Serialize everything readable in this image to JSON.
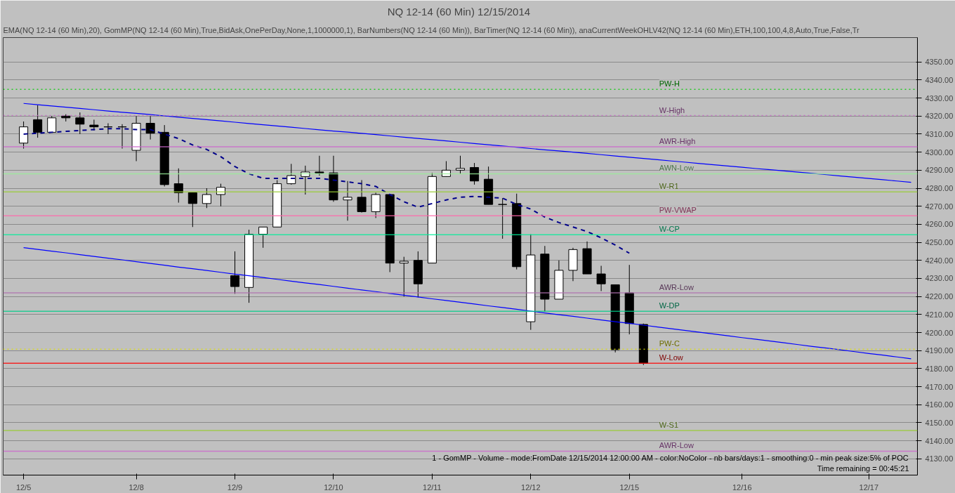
{
  "chart_data": {
    "type": "candlestick",
    "title": "NQ 12-14 (60 Min)  12/15/2014",
    "categories": [
      "12/5",
      null,
      null,
      null,
      null,
      null,
      null,
      null,
      "12/8",
      null,
      null,
      null,
      null,
      null,
      null,
      "12/9",
      null,
      null,
      null,
      null,
      null,
      null,
      "12/10",
      null,
      null,
      null,
      null,
      null,
      null,
      "12/11",
      null,
      null,
      null,
      null,
      null,
      null,
      "12/12",
      null,
      null,
      null,
      null,
      null,
      null,
      "12/15",
      null,
      null,
      null,
      null,
      null,
      null,
      null,
      "12/16",
      null,
      null,
      null,
      null,
      null,
      null,
      null,
      null,
      "12/17",
      null,
      null,
      null
    ],
    "ohlc": [
      [
        4305,
        4317,
        4302,
        4314
      ],
      [
        4318,
        4326,
        4308,
        4311
      ],
      [
        4311,
        4320,
        4311,
        4319
      ],
      [
        4320,
        4321,
        4317,
        4319
      ],
      [
        4319,
        4322,
        4310,
        4315.5
      ],
      [
        4315,
        4318,
        4312,
        4314
      ],
      [
        4314,
        4316,
        4310,
        4314
      ],
      [
        4314,
        4315.5,
        4302,
        4314
      ],
      [
        4301,
        4320,
        4295,
        4316
      ],
      [
        4316,
        4320,
        4307,
        4310.5
      ],
      [
        4311,
        4315,
        4281,
        4282
      ],
      [
        4282.5,
        4291,
        4272,
        4277.5
      ],
      [
        4277.5,
        4277.5,
        4258.5,
        4271.5
      ],
      [
        4271.5,
        4280,
        4269,
        4276.5
      ],
      [
        4276.5,
        4282.5,
        4270,
        4280.5
      ],
      [
        4231.5,
        4245,
        4221.5,
        4225.5
      ],
      [
        4225,
        4257,
        4216.5,
        4254.5
      ],
      [
        4254.5,
        4258.5,
        4247,
        4258.5
      ],
      [
        4258.5,
        4284.5,
        4258.5,
        4282.5
      ],
      [
        4282.5,
        4293.5,
        4282,
        4287
      ],
      [
        4286.5,
        4292.5,
        4276.5,
        4289
      ],
      [
        4289,
        4298,
        4287,
        4288.5
      ],
      [
        4288.5,
        4298,
        4272.5,
        4273.5
      ],
      [
        4273.5,
        4284,
        4262,
        4275
      ],
      [
        4275,
        4284.5,
        4266.5,
        4267
      ],
      [
        4267,
        4277.5,
        4263.5,
        4276.5
      ],
      [
        4276.5,
        4276.5,
        4233.5,
        4238.5
      ],
      [
        4238.5,
        4242,
        4220,
        4239.5
      ],
      [
        4240,
        4245,
        4219.5,
        4227
      ],
      [
        4238.5,
        4288.5,
        4238.5,
        4286.5
      ],
      [
        4286.5,
        4295,
        4286.5,
        4290
      ],
      [
        4290,
        4298,
        4288,
        4291
      ],
      [
        4291.5,
        4294,
        4282,
        4284
      ],
      [
        4285,
        4292,
        4271,
        4271
      ],
      [
        4271,
        4274.5,
        4252,
        4271
      ],
      [
        4271.5,
        4277,
        4235,
        4236.5
      ],
      [
        4206,
        4254.5,
        4201.5,
        4243
      ],
      [
        4243.5,
        4248,
        4211.5,
        4218.5
      ],
      [
        4218.5,
        4240,
        4218.5,
        4234.5
      ],
      [
        4234.5,
        4247,
        4228.5,
        4246
      ],
      [
        4246.5,
        4250.5,
        4232.5,
        4232.5
      ],
      [
        4232.5,
        4237,
        4223,
        4227
      ],
      [
        4226.5,
        4226.5,
        4189,
        4190.5
      ],
      [
        4222,
        4237.5,
        4199,
        4205
      ],
      [
        4204.5,
        4205,
        4182,
        4183
      ],
      null,
      null,
      null,
      null,
      null,
      null,
      null,
      null,
      null,
      null,
      null,
      null,
      null,
      null,
      null,
      null,
      null,
      null,
      null
    ],
    "series": [
      {
        "type": "line",
        "color": "#00008b",
        "line_style": "dashed",
        "values": [
          4310,
          4310.5,
          4311,
          4311.5,
          4312,
          4312.5,
          4313,
          4313,
          4312.5,
          4312.5,
          4310,
          4307.5,
          4304,
          4301.5,
          4297.5,
          4292,
          4288,
          4285.5,
          4285.5,
          4285.5,
          4285.5,
          4285.5,
          4284.5,
          4283.5,
          4282.5,
          4281,
          4276.5,
          4272.5,
          4269.5,
          4271.5,
          4273.5,
          4275,
          4275.5,
          4275,
          4274.5,
          4271,
          4268.5,
          4264,
          4261,
          4258.5,
          4256,
          4252.5,
          4248.5,
          4244,
          null,
          null,
          null,
          null,
          null,
          null,
          null,
          null,
          null,
          null,
          null,
          null,
          null,
          null,
          null,
          null,
          null,
          null,
          null,
          null
        ]
      },
      {
        "type": "line",
        "color": "#0000ff",
        "line_style": "solid",
        "values": [
          4327,
          4326.3,
          4325.6,
          4324.9,
          4324.2,
          4323.5,
          4322.8,
          4322.1,
          4321.5,
          4320.8,
          4320.1,
          4319.4,
          4318.7,
          4318,
          4317.3,
          4316.6,
          4315.9,
          4315.2,
          4314.5,
          4313.8,
          4313.1,
          4312.4,
          4311.7,
          4311.1,
          4310.4,
          4309.7,
          4309,
          4308.3,
          4307.6,
          4306.9,
          4306.2,
          4305.5,
          4304.8,
          4304.1,
          4303.4,
          4302.7,
          4302,
          4301.3,
          4300.7,
          4300,
          4299.3,
          4298.6,
          4297.9,
          4297.2,
          4296.5,
          4295.8,
          4295.1,
          4294.4,
          4293.7,
          4293,
          4292.3,
          4291.6,
          4290.9,
          4290.3,
          4289.6,
          4288.9,
          4288.2,
          4287.5,
          4286.8,
          4286.1,
          4285.4,
          4284.7,
          4284,
          4283.3
        ]
      },
      {
        "type": "line",
        "color": "#0000ff",
        "line_style": "solid",
        "values": [
          4247.1,
          4246.1,
          4245.1,
          4244.2,
          4243.2,
          4242.2,
          4241.2,
          4240.3,
          4239.3,
          4238.3,
          4237.3,
          4236.3,
          4235.4,
          4234.4,
          4233.4,
          4232.4,
          4231.5,
          4230.5,
          4229.5,
          4228.5,
          4227.5,
          4226.6,
          4225.6,
          4224.6,
          4223.6,
          4222.7,
          4221.7,
          4220.7,
          4219.7,
          4218.7,
          4217.8,
          4216.8,
          4215.8,
          4214.8,
          4213.9,
          4212.9,
          4211.9,
          4210.9,
          4209.9,
          4209,
          4208,
          4207,
          4206,
          4205.1,
          4204.1,
          4203.1,
          4202.1,
          4201.1,
          4200.2,
          4199.2,
          4198.2,
          4197.2,
          4196.3,
          4195.3,
          4194.3,
          4193.3,
          4192.3,
          4191.4,
          4190.4,
          4189.4,
          4188.4,
          4187.5,
          4186.5,
          4185.5
        ]
      }
    ],
    "ylim": [
      4121,
      4363.5
    ],
    "yticks": [
      {
        "value": 4130,
        "label": "4130.00"
      },
      {
        "value": 4140,
        "label": "4140.00"
      },
      {
        "value": 4150,
        "label": "4150.00"
      },
      {
        "value": 4160,
        "label": "4160.00"
      },
      {
        "value": 4170,
        "label": "4170.00"
      },
      {
        "value": 4180,
        "label": "4180.00"
      },
      {
        "value": 4190,
        "label": "4190.00"
      },
      {
        "value": 4200,
        "label": "4200.00"
      },
      {
        "value": 4210,
        "label": "4210.00"
      },
      {
        "value": 4220,
        "label": "4220.00"
      },
      {
        "value": 4230,
        "label": "4230.00"
      },
      {
        "value": 4240,
        "label": "4240.00"
      },
      {
        "value": 4250,
        "label": "4250.00"
      },
      {
        "value": 4260,
        "label": "4260.00"
      },
      {
        "value": 4270,
        "label": "4270.00"
      },
      {
        "value": 4280,
        "label": "4280.00"
      },
      {
        "value": 4290,
        "label": "4290.00"
      },
      {
        "value": 4300,
        "label": "4300.00"
      },
      {
        "value": 4310,
        "label": "4310.00"
      },
      {
        "value": 4320,
        "label": "4320.00"
      },
      {
        "value": 4330,
        "label": "4330.00"
      },
      {
        "value": 4340,
        "label": "4340.00"
      },
      {
        "value": 4350,
        "label": "4350.00"
      }
    ],
    "grid": "y",
    "ref_lines": [
      {
        "axis": "y",
        "value": 4334.75,
        "label": "PW-H",
        "color": "#00cc00",
        "line_style": "dotted"
      },
      {
        "axis": "y",
        "value": 4320.25,
        "label": "W-High",
        "color": "#cc66cc",
        "line_style": "dotted"
      },
      {
        "axis": "y",
        "value": 4303,
        "label": "AWR-High",
        "color": "#cc66cc",
        "line_style": "solid"
      },
      {
        "axis": "y",
        "value": 4288,
        "label": "AWN-Low",
        "color": "#99ee99",
        "line_style": "solid"
      },
      {
        "axis": "y",
        "value": 4278,
        "label": "W-R1",
        "color": "#99cc33",
        "line_style": "solid"
      },
      {
        "axis": "y",
        "value": 4264.75,
        "label": "PW-VWAP",
        "color": "#ff66aa",
        "line_style": "solid"
      },
      {
        "axis": "y",
        "value": 4254.25,
        "label": "W-CP",
        "color": "#00ee99",
        "line_style": "solid"
      },
      {
        "axis": "y",
        "value": 4222,
        "label": "AWR-Low",
        "color": "#b070b0",
        "line_style": "solid"
      },
      {
        "axis": "y",
        "value": 4211.75,
        "label": "W-DP",
        "color": "#00cc88",
        "line_style": "solid"
      },
      {
        "axis": "y",
        "value": 4190.75,
        "label": "PW-C",
        "color": "#dddd00",
        "line_style": "dotted"
      },
      {
        "axis": "y",
        "value": 4183,
        "label": "W-Low",
        "color": "#ff0000",
        "line_style": "solid"
      },
      {
        "axis": "y",
        "value": 4145.75,
        "label": "W-S1",
        "color": "#99cc33",
        "line_style": "solid"
      },
      {
        "axis": "y",
        "value": 4134.25,
        "label": "AWR-Low",
        "color": "#cc66cc",
        "line_style": "solid"
      }
    ],
    "annotations": [
      "EMA(NQ 12-14 (60 Min),20), GomMP(NQ 12-14 (60 Min),True,BidAsk,OnePerDay,None,1,1000000,1), BarNumbers(NQ 12-14 (60 Min)), BarTimer(NQ 12-14 (60 Min)), anaCurrentWeekOHLV42(NQ 12-14 (60 Min),ETH,100,100,4,8,Auto,True,False,Tr",
      "1 - GomMP - Volume - mode:FromDate 12/15/2014 12:00:00 AM - color:NoColor - nb bars/days:1 - smoothing:0 - min peak size:5% of POC",
      "Time remaining = 00:45:21"
    ]
  }
}
